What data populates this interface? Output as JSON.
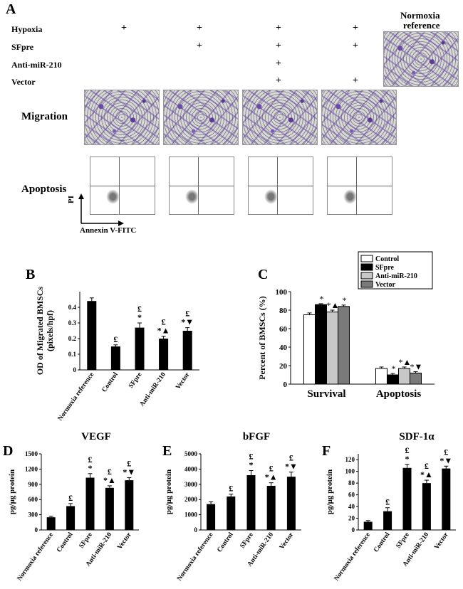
{
  "panel_a": {
    "letter": "A",
    "rows": [
      "Hypoxia",
      "SFpre",
      "Anti-miR-210",
      "Vector"
    ],
    "plus_symbol": "+",
    "normoxia_label_1": "Normoxia",
    "normoxia_label_2": "reference",
    "migration_label": "Migration",
    "apoptosis_label": "Apoptosis",
    "flow_xlabel": "Annexin V-FITC",
    "flow_ylabel": "PI"
  },
  "chart_data": [
    {
      "panel": "B",
      "type": "bar",
      "ylabel_1": "OD of Migrated BMSCs",
      "ylabel_2": "(pixels/hpf)",
      "categories": [
        "Normoxia reference",
        "Control",
        "SFpre",
        "Anti-miR-210",
        "Vector"
      ],
      "values": [
        0.44,
        0.15,
        0.27,
        0.2,
        0.25
      ],
      "errors": [
        0.02,
        0.01,
        0.03,
        0.015,
        0.02
      ],
      "ylim": [
        0,
        0.5
      ],
      "yticks": [
        "0",
        "0.1",
        "0.2",
        "0.3",
        "0.4"
      ],
      "annotations": [
        [],
        [
          "£"
        ],
        [
          "*",
          "£"
        ],
        [
          "*▲",
          "£"
        ],
        [
          "*▼",
          "£"
        ]
      ]
    },
    {
      "panel": "C",
      "type": "bar",
      "ylabel": "Percent of BMSCs (%)",
      "categories": [
        "Survival",
        "Apoptosis"
      ],
      "series": [
        {
          "name": "Control",
          "color": "#ffffff",
          "values": [
            75,
            17
          ],
          "errors": [
            2,
            1.5
          ],
          "annotations": [
            "",
            ""
          ]
        },
        {
          "name": "SFpre",
          "color": "#000000",
          "values": [
            86,
            10
          ],
          "errors": [
            1,
            1.5
          ],
          "annotations": [
            "*",
            "*"
          ]
        },
        {
          "name": "Anti-miR-210",
          "color": "#c8c8c8",
          "values": [
            78,
            17
          ],
          "errors": [
            2,
            1.5
          ],
          "annotations": [
            "*▲",
            "*▲"
          ]
        },
        {
          "name": "Vector",
          "color": "#7a7a7a",
          "values": [
            84,
            12
          ],
          "errors": [
            1.5,
            1.5
          ],
          "annotations": [
            "*",
            "*▼"
          ]
        }
      ],
      "ylim": [
        0,
        100
      ],
      "yticks": [
        "0",
        "20",
        "40",
        "60",
        "80",
        "100"
      ]
    },
    {
      "panel": "D",
      "type": "bar",
      "title": "VEGF",
      "ylabel": "pg/μg protein",
      "categories": [
        "Normoxia reference",
        "Control",
        "SFpre",
        "Anti-miR-210",
        "Vector"
      ],
      "values": [
        250,
        470,
        1030,
        830,
        980
      ],
      "errors": [
        20,
        50,
        80,
        40,
        50
      ],
      "ylim": [
        0,
        1500
      ],
      "yticks": [
        "0",
        "300",
        "600",
        "900",
        "1200",
        "1500"
      ],
      "annotations": [
        [],
        [
          "£"
        ],
        [
          "*",
          "£"
        ],
        [
          "*▲",
          "£"
        ],
        [
          "*▼",
          "£"
        ]
      ]
    },
    {
      "panel": "E",
      "type": "bar",
      "title": "bFGF",
      "ylabel": "pg/μg protein",
      "categories": [
        "Normoxia reference",
        "Control",
        "SFpre",
        "Anti-miR-210",
        "Vector"
      ],
      "values": [
        1700,
        2200,
        3600,
        2900,
        3500
      ],
      "errors": [
        150,
        150,
        300,
        200,
        300
      ],
      "ylim": [
        0,
        5000
      ],
      "yticks": [
        "0",
        "1000",
        "2000",
        "3000",
        "4000",
        "5000"
      ],
      "annotations": [
        [],
        [
          "£"
        ],
        [
          "*",
          "£"
        ],
        [
          "*▲",
          "£"
        ],
        [
          "*▼",
          "£"
        ]
      ]
    },
    {
      "panel": "F",
      "type": "bar",
      "title": "SDF-1α",
      "ylabel": "pg/μg protein",
      "categories": [
        "Normoxia reference",
        "Control",
        "SFpre",
        "Anti-miR-210",
        "Vector"
      ],
      "values": [
        14,
        32,
        106,
        80,
        105
      ],
      "errors": [
        2,
        6,
        6,
        5,
        4
      ],
      "ylim": [
        0,
        130
      ],
      "yticks": [
        "0",
        "20",
        "40",
        "60",
        "80",
        "100",
        "120"
      ],
      "annotations": [
        [],
        [
          "£"
        ],
        [
          "*",
          "£"
        ],
        [
          "*▲",
          "£"
        ],
        [
          "*▼",
          "£"
        ]
      ]
    }
  ]
}
